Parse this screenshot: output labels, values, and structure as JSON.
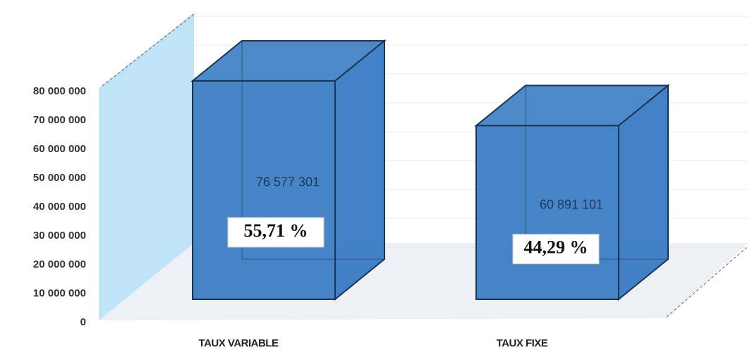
{
  "chart_data": {
    "type": "bar3d",
    "categories": [
      "TAUX VARIABLE",
      "TAUX FIXE"
    ],
    "values": [
      76577301,
      60891101
    ],
    "value_labels": [
      "76 577 301",
      "60 891 101"
    ],
    "percent_labels": [
      "55,71 %",
      "44,29 %"
    ],
    "color": "#2f74c0",
    "ylim": [
      0,
      80000000
    ],
    "yticks": [
      {
        "value": 0,
        "label": "0"
      },
      {
        "value": 10000000,
        "label": "10 000 000"
      },
      {
        "value": 20000000,
        "label": "20 000 000"
      },
      {
        "value": 30000000,
        "label": "30 000 000"
      },
      {
        "value": 40000000,
        "label": "40 000 000"
      },
      {
        "value": 50000000,
        "label": "50 000 000"
      },
      {
        "value": 60000000,
        "label": "60 000 000"
      },
      {
        "value": 70000000,
        "label": "70 000 000"
      },
      {
        "value": 80000000,
        "label": "80 000 000"
      }
    ],
    "grid": true
  }
}
